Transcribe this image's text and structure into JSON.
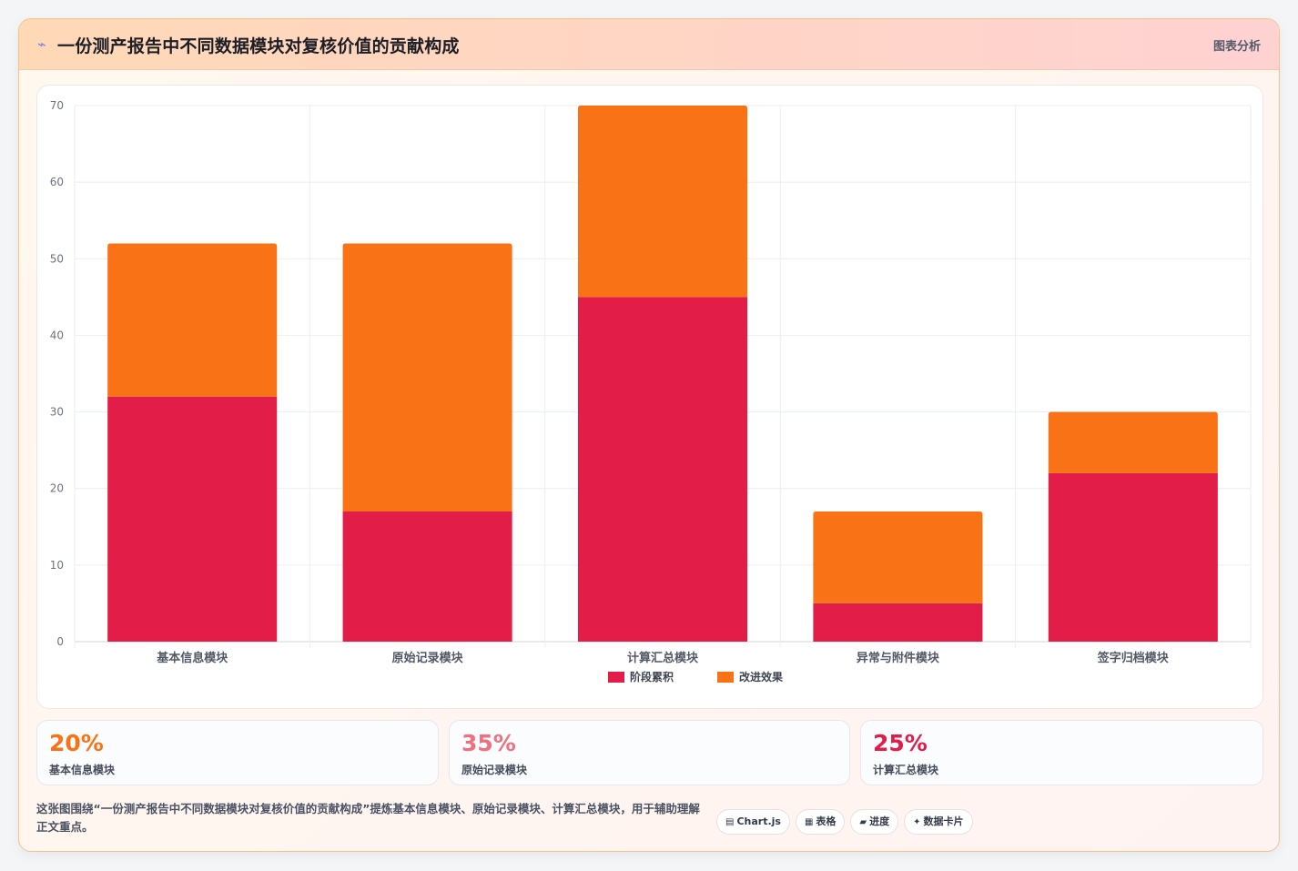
{
  "header": {
    "icon": "⌁",
    "title": "一份测产报告中不同数据模块对复核价值的贡献构成",
    "tag": "图表分析"
  },
  "chart_data": {
    "type": "bar",
    "stacked": true,
    "categories": [
      "基本信息模块",
      "原始记录模块",
      "计算汇总模块",
      "异常与附件模块",
      "签字归档模块"
    ],
    "series": [
      {
        "name": "阶段累积",
        "color": "#e11d48",
        "values": [
          32,
          17,
          45,
          5,
          22
        ]
      },
      {
        "name": "改进效果",
        "color": "#f97316",
        "values": [
          20,
          35,
          25,
          12,
          8
        ]
      }
    ],
    "ylim": [
      0,
      70
    ],
    "yticks": [
      0,
      10,
      20,
      30,
      40,
      50,
      60,
      70
    ],
    "grid": true,
    "legend": "bottom"
  },
  "stats": [
    {
      "value": "20%",
      "label": "基本信息模块",
      "color": "#f97316"
    },
    {
      "value": "35%",
      "label": "原始记录模块",
      "color": "#f0707f"
    },
    {
      "value": "25%",
      "label": "计算汇总模块",
      "color": "#e11d48"
    }
  ],
  "footer": {
    "description": "这张图围绕“一份测产报告中不同数据模块对复核价值的贡献构成”提炼基本信息模块、原始记录模块、计算汇总模块，用于辅助理解正文重点。",
    "chips": [
      {
        "icon": "▤",
        "label": "Chart.js"
      },
      {
        "icon": "▦",
        "label": "表格"
      },
      {
        "icon": "▰",
        "label": "进度"
      },
      {
        "icon": "✦",
        "label": "数据卡片"
      }
    ]
  }
}
